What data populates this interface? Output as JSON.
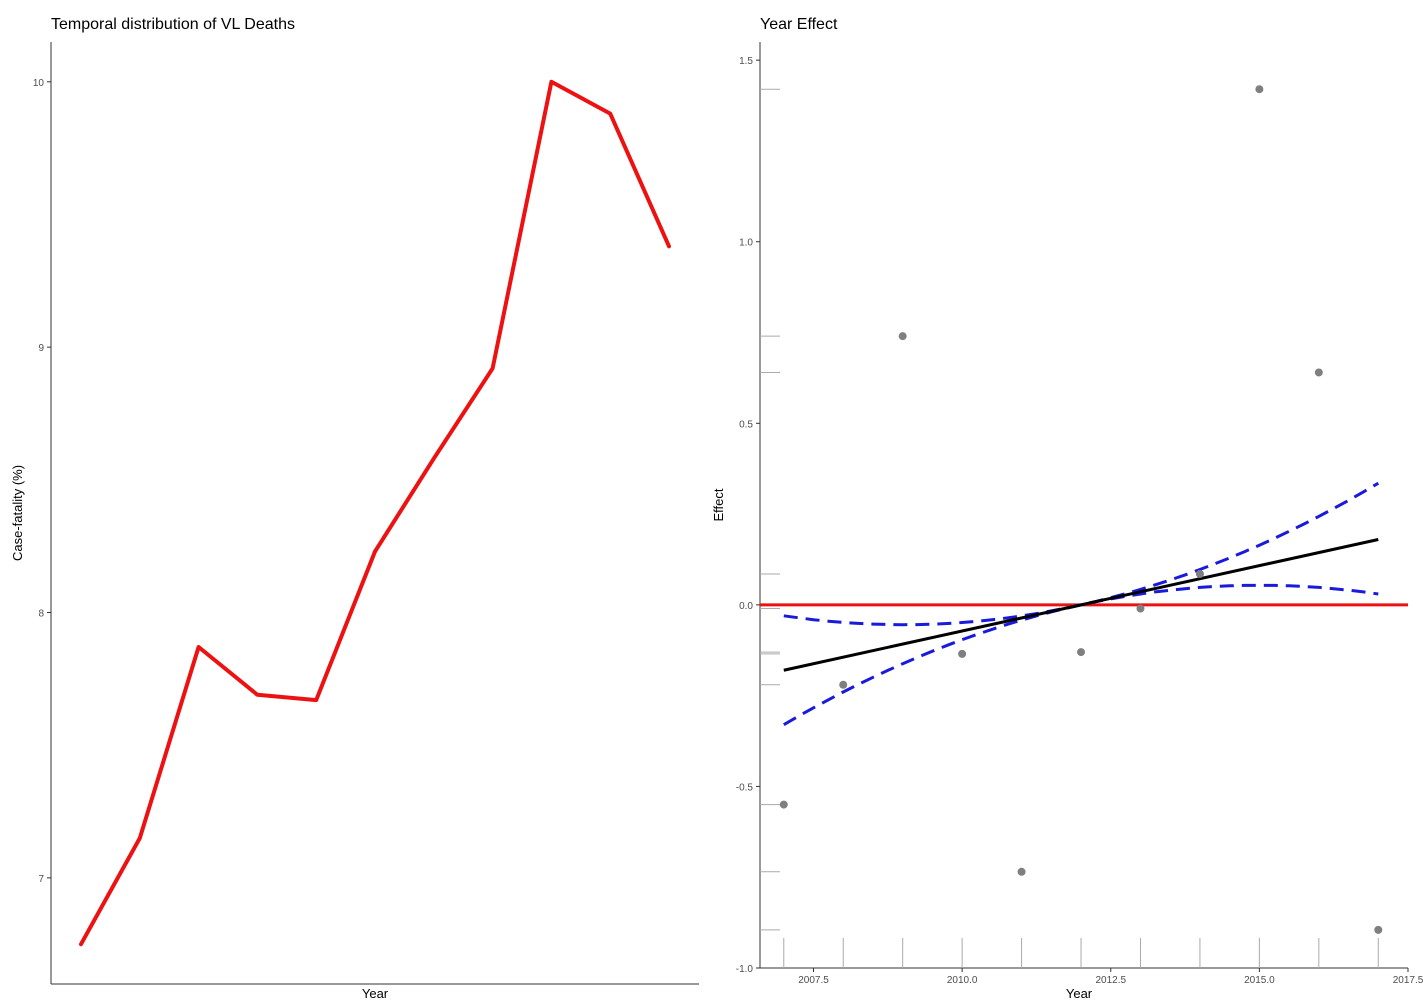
{
  "chart_data": [
    {
      "type": "line",
      "title": "Temporal distribution of VL Deaths",
      "xlabel": "Year",
      "ylabel": "Case-fatality (%)",
      "x": [
        1,
        2,
        3,
        4,
        5,
        6,
        7,
        8,
        9,
        10,
        11
      ],
      "series": [
        {
          "values": [
            6.75,
            7.15,
            7.87,
            7.69,
            7.67,
            8.23,
            8.58,
            8.92,
            10.0,
            9.88,
            9.38
          ]
        }
      ],
      "ylim": [
        6.6,
        10.15
      ],
      "yticks": [
        7,
        8,
        9,
        10
      ],
      "xticks_shown": false,
      "grid": false,
      "colors": {
        "line": "#ee1111"
      }
    },
    {
      "type": "scatter",
      "title": "Year Effect",
      "xlabel": "Year",
      "ylabel": "Effect",
      "xlim": [
        2006.6,
        2017.5
      ],
      "ylim": [
        -1.0,
        1.55
      ],
      "xticks": [
        "2007.5",
        "2010.0",
        "2012.5",
        "2015.0",
        "2017.5"
      ],
      "xtick_values": [
        2007.5,
        2010.0,
        2012.5,
        2015.0,
        2017.5
      ],
      "yticks": [
        "-1.0",
        "-0.5",
        "0.0",
        "0.5",
        "1.0",
        "1.5"
      ],
      "ytick_values": [
        -1.0,
        -0.5,
        0.0,
        0.5,
        1.0,
        1.5
      ],
      "points": [
        {
          "x": 2007,
          "y": -0.55
        },
        {
          "x": 2008,
          "y": -0.22
        },
        {
          "x": 2009,
          "y": 0.74
        },
        {
          "x": 2010,
          "y": -0.135
        },
        {
          "x": 2011,
          "y": -0.735
        },
        {
          "x": 2012,
          "y": -0.13
        },
        {
          "x": 2013,
          "y": -0.01
        },
        {
          "x": 2014,
          "y": 0.085
        },
        {
          "x": 2015,
          "y": 1.42
        },
        {
          "x": 2016,
          "y": 0.64
        },
        {
          "x": 2017,
          "y": -0.895
        }
      ],
      "fit_line": {
        "x": [
          2007,
          2017
        ],
        "y": [
          -0.18,
          0.18
        ]
      },
      "ci_upper": {
        "x": [
          2007,
          2012,
          2017
        ],
        "y": [
          -0.03,
          0.0,
          0.335
        ]
      },
      "ci_lower": {
        "x": [
          2007,
          2012,
          2017
        ],
        "y": [
          -0.33,
          0.0,
          0.03
        ]
      },
      "reference_line_y": 0.0,
      "rug_x": [
        2007,
        2008,
        2009,
        2010,
        2011,
        2012,
        2013,
        2014,
        2015,
        2016,
        2017
      ],
      "rug_y": [
        1.42,
        0.74,
        0.64,
        0.085,
        -0.01,
        -0.13,
        -0.135,
        -0.22,
        -0.55,
        -0.735,
        -0.895
      ],
      "grid": false,
      "colors": {
        "points": "#7f7f7f",
        "fit": "#000000",
        "ci": "#1a1adb",
        "reference": "#ee1111",
        "rug": "#aaaaaa"
      }
    }
  ]
}
